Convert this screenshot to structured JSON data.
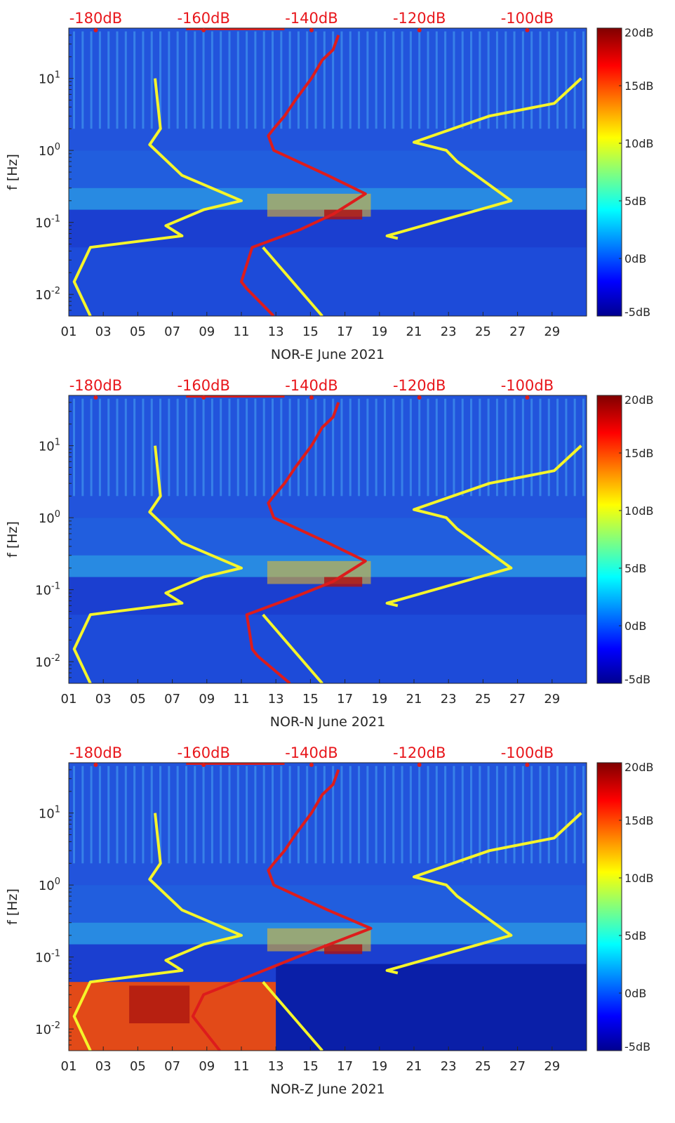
{
  "colors": {
    "yellow_line": "#f5f52a",
    "red_line": "#dd1c1c",
    "top_label": "#e8161b",
    "background": "#1b3fd0"
  },
  "chart_data": [
    {
      "type": "heatmap",
      "title": "",
      "xlabel": "NOR-E June 2021",
      "ylabel": "f [Hz]",
      "x_ticks": [
        "01",
        "03",
        "05",
        "07",
        "09",
        "11",
        "13",
        "15",
        "17",
        "19",
        "21",
        "23",
        "25",
        "27",
        "29"
      ],
      "y_ticks": [
        "10-2",
        "10-1",
        "100",
        "101"
      ],
      "y_range_hz": [
        0.005,
        50
      ],
      "x_range_days": [
        1,
        31
      ],
      "top_axis_ticks": [
        "-180dB",
        "-160dB",
        "-140dB",
        "-120dB",
        "-100dB"
      ],
      "top_axis_range_db": [
        -185,
        -89
      ],
      "colorbar_ticks": [
        "20dB",
        "15dB",
        "10dB",
        "5dB",
        "0dB",
        "-5dB"
      ],
      "colorbar_range_db": [
        -5,
        20
      ],
      "series": [
        {
          "name": "noise model low/high (yellow)",
          "db": [
            [
              -181,
              0.005
            ],
            [
              -184,
              0.015
            ],
            [
              -181,
              0.045
            ],
            [
              -164,
              0.065
            ],
            [
              -167,
              0.09
            ],
            [
              -160,
              0.15
            ],
            [
              -153,
              0.2
            ],
            [
              -164,
              0.45
            ],
            [
              -170,
              1.2
            ],
            [
              -168,
              2
            ],
            [
              -169,
              10
            ],
            "break",
            [
              -149,
              0.045
            ],
            [
              -138,
              0.005
            ],
            "break",
            [
              -124,
              0.06
            ],
            [
              -126,
              0.065
            ],
            [
              -103,
              0.2
            ],
            [
              -113,
              0.7
            ],
            [
              -115,
              1
            ],
            [
              -121,
              1.3
            ],
            [
              -107,
              3
            ],
            [
              -95,
              4.5
            ],
            [
              -90,
              10
            ]
          ]
        },
        {
          "name": "median PSD (red)",
          "db": [
            [
              -147,
              0.005
            ],
            [
              -152,
              0.012
            ],
            [
              -153,
              0.015
            ],
            [
              -151,
              0.045
            ],
            [
              -142,
              0.08
            ],
            [
              -136,
              0.13
            ],
            [
              -130,
              0.25
            ],
            [
              -137,
              0.45
            ],
            [
              -147,
              1
            ],
            [
              -148,
              1.6
            ],
            [
              -147,
              2
            ],
            [
              -145,
              3
            ],
            [
              -143,
              5
            ],
            [
              -140,
              10
            ],
            [
              -138,
              18
            ],
            [
              -136,
              25
            ],
            [
              -135,
              40
            ]
          ]
        }
      ]
    },
    {
      "type": "heatmap",
      "title": "",
      "xlabel": "NOR-N June 2021",
      "ylabel": "f [Hz]",
      "x_ticks": [
        "01",
        "03",
        "05",
        "07",
        "09",
        "11",
        "13",
        "15",
        "17",
        "19",
        "21",
        "23",
        "25",
        "27",
        "29"
      ],
      "y_ticks": [
        "10-2",
        "10-1",
        "100",
        "101"
      ],
      "y_range_hz": [
        0.005,
        50
      ],
      "x_range_days": [
        1,
        31
      ],
      "top_axis_ticks": [
        "-180dB",
        "-160dB",
        "-140dB",
        "-120dB",
        "-100dB"
      ],
      "top_axis_range_db": [
        -185,
        -89
      ],
      "colorbar_ticks": [
        "20dB",
        "15dB",
        "10dB",
        "5dB",
        "0dB",
        "-5dB"
      ],
      "colorbar_range_db": [
        -5,
        20
      ],
      "series": [
        {
          "name": "noise model low/high (yellow)",
          "db": [
            [
              -181,
              0.005
            ],
            [
              -184,
              0.015
            ],
            [
              -181,
              0.045
            ],
            [
              -164,
              0.065
            ],
            [
              -167,
              0.09
            ],
            [
              -160,
              0.15
            ],
            [
              -153,
              0.2
            ],
            [
              -164,
              0.45
            ],
            [
              -170,
              1.2
            ],
            [
              -168,
              2
            ],
            [
              -169,
              10
            ],
            "break",
            [
              -149,
              0.045
            ],
            [
              -138,
              0.005
            ],
            "break",
            [
              -124,
              0.06
            ],
            [
              -126,
              0.065
            ],
            [
              -103,
              0.2
            ],
            [
              -113,
              0.7
            ],
            [
              -115,
              1
            ],
            [
              -121,
              1.3
            ],
            [
              -107,
              3
            ],
            [
              -95,
              4.5
            ],
            [
              -90,
              10
            ]
          ]
        },
        {
          "name": "median PSD (red)",
          "db": [
            [
              -144,
              0.005
            ],
            [
              -150,
              0.012
            ],
            [
              -151,
              0.015
            ],
            [
              -152,
              0.045
            ],
            [
              -143,
              0.08
            ],
            [
              -136,
              0.13
            ],
            [
              -130,
              0.25
            ],
            [
              -137,
              0.45
            ],
            [
              -147,
              1
            ],
            [
              -148,
              1.6
            ],
            [
              -147,
              2
            ],
            [
              -145,
              3
            ],
            [
              -143,
              5
            ],
            [
              -140,
              10
            ],
            [
              -138,
              18
            ],
            [
              -136,
              25
            ],
            [
              -135,
              40
            ]
          ]
        }
      ]
    },
    {
      "type": "heatmap",
      "title": "",
      "xlabel": "NOR-Z June 2021",
      "ylabel": "f [Hz]",
      "x_ticks": [
        "01",
        "03",
        "05",
        "07",
        "09",
        "11",
        "13",
        "15",
        "17",
        "19",
        "21",
        "23",
        "25",
        "27",
        "29"
      ],
      "y_ticks": [
        "10-2",
        "10-1",
        "100",
        "101"
      ],
      "y_range_hz": [
        0.005,
        50
      ],
      "x_range_days": [
        1,
        31
      ],
      "top_axis_ticks": [
        "-180dB",
        "-160dB",
        "-140dB",
        "-120dB",
        "-100dB"
      ],
      "top_axis_range_db": [
        -185,
        -89
      ],
      "colorbar_ticks": [
        "20dB",
        "15dB",
        "10dB",
        "5dB",
        "0dB",
        "-5dB"
      ],
      "colorbar_range_db": [
        -5,
        20
      ],
      "series": [
        {
          "name": "noise model low/high (yellow)",
          "db": [
            [
              -181,
              0.005
            ],
            [
              -184,
              0.015
            ],
            [
              -181,
              0.045
            ],
            [
              -164,
              0.065
            ],
            [
              -167,
              0.09
            ],
            [
              -160,
              0.15
            ],
            [
              -153,
              0.2
            ],
            [
              -164,
              0.45
            ],
            [
              -170,
              1.2
            ],
            [
              -168,
              2
            ],
            [
              -169,
              10
            ],
            "break",
            [
              -149,
              0.045
            ],
            [
              -138,
              0.005
            ],
            "break",
            [
              -124,
              0.06
            ],
            [
              -126,
              0.065
            ],
            [
              -103,
              0.2
            ],
            [
              -113,
              0.7
            ],
            [
              -115,
              1
            ],
            [
              -121,
              1.3
            ],
            [
              -107,
              3
            ],
            [
              -95,
              4.5
            ],
            [
              -90,
              10
            ]
          ]
        },
        {
          "name": "median PSD (red)",
          "db": [
            [
              -157,
              0.005
            ],
            [
              -161,
              0.012
            ],
            [
              -162,
              0.015
            ],
            [
              -160,
              0.03
            ],
            [
              -150,
              0.06
            ],
            [
              -140,
              0.12
            ],
            [
              -129,
              0.25
            ],
            [
              -137,
              0.45
            ],
            [
              -147,
              1
            ],
            [
              -148,
              1.6
            ],
            [
              -147,
              2
            ],
            [
              -145,
              3
            ],
            [
              -143,
              5
            ],
            [
              -140,
              10
            ],
            [
              -138,
              18
            ],
            [
              -136,
              25
            ],
            [
              -135,
              40
            ]
          ]
        }
      ]
    }
  ]
}
